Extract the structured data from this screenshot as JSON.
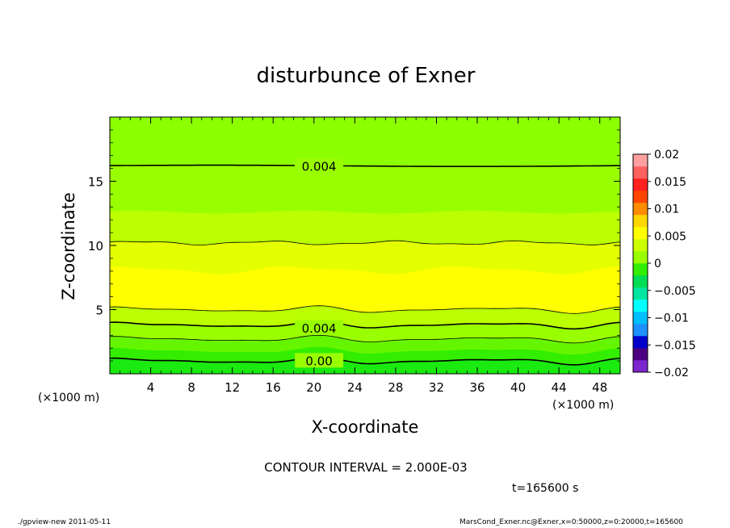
{
  "chart_data": {
    "type": "contour",
    "title": "disturbunce of Exner",
    "xlabel": "X-coordinate",
    "ylabel": "Z-coordinate",
    "x_unit": "(×1000 m)",
    "y_unit": "(×1000 m)",
    "xlim": [
      0,
      50
    ],
    "ylim": [
      0,
      20
    ],
    "x_ticks": [
      4,
      8,
      12,
      16,
      20,
      24,
      28,
      32,
      36,
      40,
      44,
      48
    ],
    "y_ticks": [
      5,
      10,
      15
    ],
    "colorbar": {
      "levels": [
        -0.02,
        -0.015,
        -0.01,
        -0.005,
        0,
        0.005,
        0.01,
        0.015,
        0.02
      ],
      "labels": [
        "0.02",
        "0.015",
        "0.01",
        "0.005",
        "0",
        "−0.005",
        "−0.01",
        "−0.015",
        "−0.02"
      ],
      "colors": [
        "#7d26cd",
        "#4b0082",
        "#0000cd",
        "#1e90ff",
        "#00bfff",
        "#00ffff",
        "#00e5a0",
        "#00dd55",
        "#33ee00",
        "#99ff00",
        "#ccff00",
        "#ffff00",
        "#ffd700",
        "#ff8c00",
        "#ff4500",
        "#ff2020",
        "#ff6060",
        "#ffa0a0"
      ]
    },
    "contour_labels": [
      {
        "text": "0.004",
        "x": 20.5,
        "z": 16.2
      },
      {
        "text": "0.004",
        "x": 20.5,
        "z": 3.6
      },
      {
        "text": "0.00",
        "x": 20.5,
        "z": 1.05
      }
    ],
    "contour_interval_text": "CONTOUR INTERVAL = 2.000E-03",
    "time_text": "t=165600 s"
  },
  "footer": {
    "left": "./gpview-new   2011-05-11",
    "right": "MarsCond_Exner.nc@Exner,x=0:50000,z=0:20000,t=165600"
  }
}
